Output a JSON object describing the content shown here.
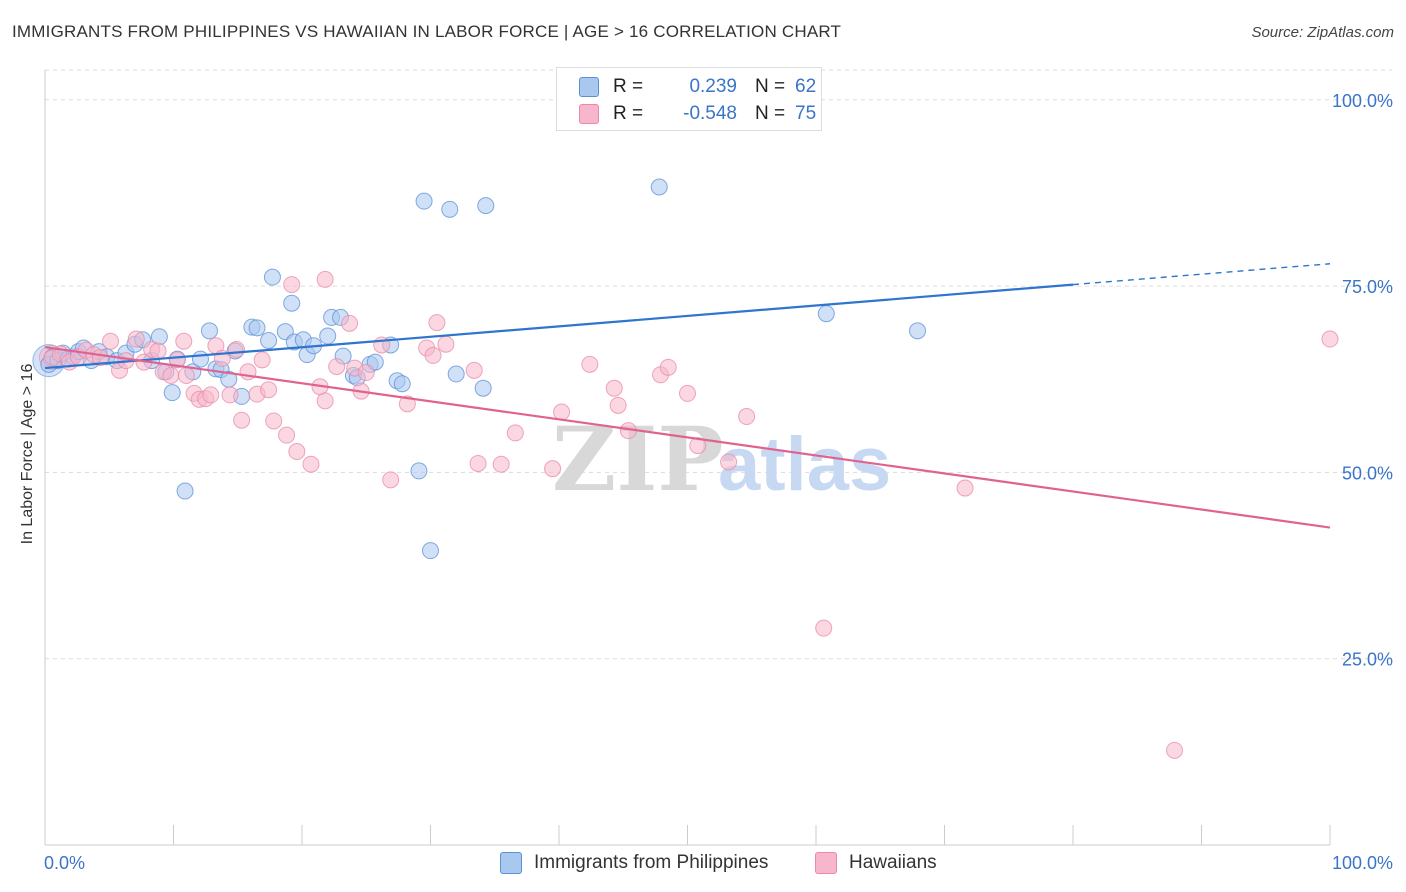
{
  "title": "IMMIGRANTS FROM PHILIPPINES VS HAWAIIAN IN LABOR FORCE | AGE > 16 CORRELATION CHART",
  "source": "Source: ZipAtlas.com",
  "watermark": {
    "zip": "ZIP",
    "atlas": "atlas"
  },
  "legend": {
    "r_label": "R =",
    "n_label": "N =",
    "series": [
      {
        "name": "Immigrants from Philippines",
        "r": "0.239",
        "n": "62"
      },
      {
        "name": "Hawaiians",
        "r": "-0.548",
        "n": "75"
      }
    ]
  },
  "colors": {
    "blue_fill": "#a9c8f0",
    "blue_stroke": "#5b8fd6",
    "blue_line": "#2f74cf",
    "pink_fill": "#f7b6cb",
    "pink_stroke": "#e88aa8",
    "pink_line": "#e0638f",
    "tick_label": "#3a74c9"
  },
  "chart_data": {
    "type": "scatter",
    "title": "IMMIGRANTS FROM PHILIPPINES VS HAWAIIAN IN LABOR FORCE | AGE > 16 CORRELATION CHART",
    "xlabel": "",
    "ylabel": "In Labor Force | Age > 16",
    "xlim": [
      0,
      100
    ],
    "ylim": [
      0,
      104
    ],
    "x_tick_labels": [
      "0.0%",
      "100.0%"
    ],
    "y_ticks": [
      25,
      50,
      75,
      100
    ],
    "y_tick_labels": [
      "25.0%",
      "50.0%",
      "75.0%",
      "100.0%"
    ],
    "grid": true,
    "series": [
      {
        "name": "Immigrants from Philippines",
        "color": "blue",
        "trend": {
          "x": [
            0,
            80
          ],
          "y": [
            64.0,
            75.2
          ],
          "dashed_to": [
            100,
            78.0
          ]
        },
        "points": [
          [
            0.3,
            64.5
          ],
          [
            0.6,
            65.5
          ],
          [
            1.0,
            65.0
          ],
          [
            1.4,
            66.0
          ],
          [
            1.8,
            65.2
          ],
          [
            2.2,
            65.5
          ],
          [
            2.6,
            66.2
          ],
          [
            3.0,
            66.7
          ],
          [
            3.6,
            65.0
          ],
          [
            4.2,
            66.2
          ],
          [
            4.8,
            65.5
          ],
          [
            5.6,
            65.0
          ],
          [
            6.3,
            66.0
          ],
          [
            7.0,
            67.2
          ],
          [
            7.6,
            67.8
          ],
          [
            8.3,
            65.0
          ],
          [
            8.9,
            68.2
          ],
          [
            9.4,
            63.5
          ],
          [
            9.9,
            60.7
          ],
          [
            10.3,
            65.2
          ],
          [
            10.9,
            47.5
          ],
          [
            11.5,
            63.5
          ],
          [
            12.1,
            65.2
          ],
          [
            12.8,
            69.0
          ],
          [
            13.3,
            63.9
          ],
          [
            13.7,
            63.8
          ],
          [
            14.3,
            62.5
          ],
          [
            14.8,
            66.3
          ],
          [
            15.3,
            60.2
          ],
          [
            16.1,
            69.5
          ],
          [
            16.5,
            69.4
          ],
          [
            17.4,
            67.7
          ],
          [
            17.7,
            76.2
          ],
          [
            18.7,
            68.9
          ],
          [
            19.2,
            72.7
          ],
          [
            19.4,
            67.5
          ],
          [
            20.1,
            67.8
          ],
          [
            20.4,
            65.8
          ],
          [
            20.9,
            67.0
          ],
          [
            22.0,
            68.3
          ],
          [
            22.3,
            70.8
          ],
          [
            23.0,
            70.8
          ],
          [
            23.2,
            65.6
          ],
          [
            24.0,
            63.0
          ],
          [
            24.3,
            62.7
          ],
          [
            25.3,
            64.5
          ],
          [
            25.7,
            64.8
          ],
          [
            26.9,
            67.1
          ],
          [
            27.4,
            62.3
          ],
          [
            27.8,
            61.9
          ],
          [
            29.1,
            50.2
          ],
          [
            29.5,
            86.4
          ],
          [
            30.0,
            39.5
          ],
          [
            31.5,
            85.3
          ],
          [
            32.0,
            63.2
          ],
          [
            34.1,
            61.3
          ],
          [
            34.3,
            85.8
          ],
          [
            47.8,
            88.3
          ],
          [
            60.8,
            71.3
          ],
          [
            67.9,
            69.0
          ]
        ]
      },
      {
        "name": "Hawaiians",
        "color": "pink",
        "trend": {
          "x": [
            0,
            100
          ],
          "y": [
            66.8,
            42.6
          ]
        },
        "points": [
          [
            0.5,
            65.3
          ],
          [
            1.2,
            65.9
          ],
          [
            1.9,
            64.8
          ],
          [
            2.6,
            65.5
          ],
          [
            3.2,
            66.4
          ],
          [
            3.8,
            65.8
          ],
          [
            4.3,
            65.4
          ],
          [
            5.1,
            67.6
          ],
          [
            5.8,
            63.7
          ],
          [
            6.3,
            65.0
          ],
          [
            7.1,
            67.9
          ],
          [
            7.7,
            64.8
          ],
          [
            8.3,
            66.5
          ],
          [
            8.8,
            66.3
          ],
          [
            9.2,
            63.5
          ],
          [
            9.8,
            63.0
          ],
          [
            10.3,
            65.1
          ],
          [
            10.8,
            67.6
          ],
          [
            11.0,
            63.0
          ],
          [
            11.6,
            60.6
          ],
          [
            12.0,
            59.8
          ],
          [
            12.5,
            59.9
          ],
          [
            12.9,
            60.4
          ],
          [
            13.3,
            67.0
          ],
          [
            13.8,
            65.3
          ],
          [
            14.4,
            60.4
          ],
          [
            14.9,
            66.5
          ],
          [
            15.3,
            57.0
          ],
          [
            15.8,
            63.5
          ],
          [
            16.5,
            60.5
          ],
          [
            16.9,
            65.1
          ],
          [
            17.4,
            61.1
          ],
          [
            17.8,
            56.9
          ],
          [
            18.8,
            55.0
          ],
          [
            19.2,
            75.2
          ],
          [
            19.6,
            52.8
          ],
          [
            20.7,
            51.1
          ],
          [
            21.4,
            61.5
          ],
          [
            21.8,
            75.9
          ],
          [
            21.8,
            59.6
          ],
          [
            22.7,
            64.2
          ],
          [
            23.7,
            70.0
          ],
          [
            24.1,
            64.0
          ],
          [
            24.6,
            60.9
          ],
          [
            25.0,
            63.4
          ],
          [
            26.2,
            67.1
          ],
          [
            26.9,
            49.0
          ],
          [
            28.2,
            59.2
          ],
          [
            29.7,
            66.7
          ],
          [
            30.2,
            65.7
          ],
          [
            30.5,
            70.1
          ],
          [
            31.2,
            67.2
          ],
          [
            33.4,
            63.7
          ],
          [
            33.7,
            51.2
          ],
          [
            35.5,
            51.1
          ],
          [
            36.6,
            55.3
          ],
          [
            39.5,
            50.5
          ],
          [
            40.2,
            58.1
          ],
          [
            42.4,
            64.5
          ],
          [
            44.3,
            61.3
          ],
          [
            44.6,
            59.0
          ],
          [
            45.4,
            55.6
          ],
          [
            47.9,
            63.1
          ],
          [
            48.5,
            64.1
          ],
          [
            50.0,
            60.6
          ],
          [
            50.8,
            53.6
          ],
          [
            53.2,
            51.4
          ],
          [
            54.6,
            57.5
          ],
          [
            60.6,
            29.1
          ],
          [
            71.6,
            47.9
          ],
          [
            87.9,
            12.7
          ],
          [
            100.0,
            67.9
          ]
        ]
      }
    ]
  }
}
